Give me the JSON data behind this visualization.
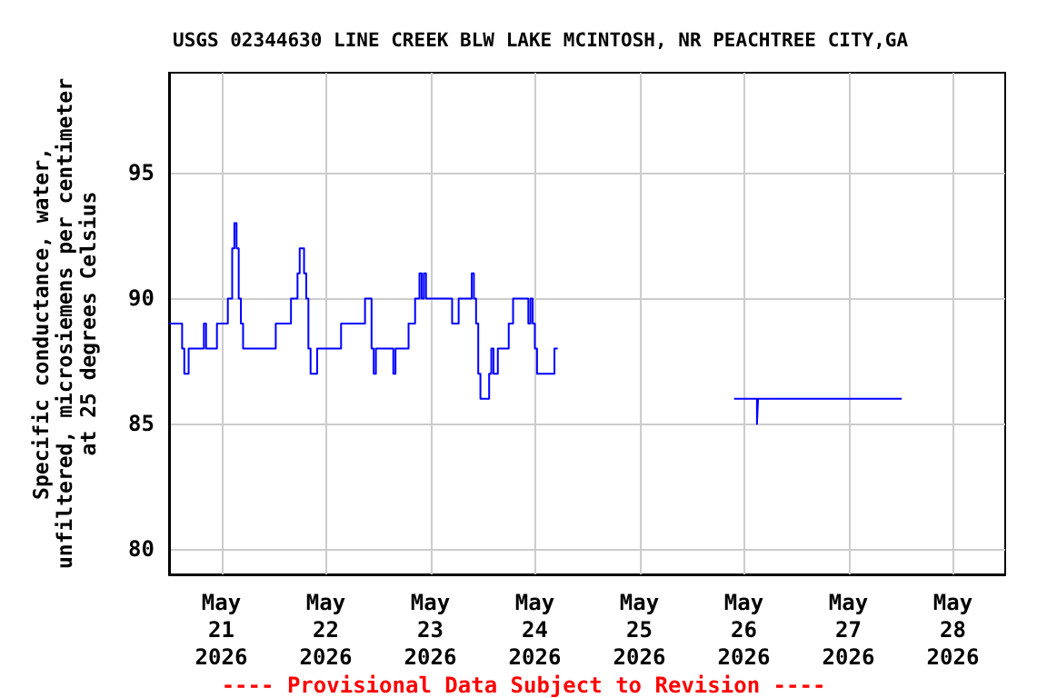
{
  "chart_data": {
    "type": "step",
    "title": "USGS 02344630 LINE CREEK BLW LAKE MCINTOSH, NR PEACHTREE CITY,GA",
    "ylabel": "Specific conductance, water,\nunfiltered, microsiemens per centimeter\nat 25 degrees Celsius",
    "annotations": [
      "---- Provisional Data Subject to Revision ----"
    ],
    "x": [
      "2026-05-20T12:00",
      "2026-05-20T15:00",
      "2026-05-20T15:30",
      "2026-05-20T16:30",
      "2026-05-20T20:00",
      "2026-05-20T20:30",
      "2026-05-20T23:00",
      "2026-05-21T01:30",
      "2026-05-21T02:30",
      "2026-05-21T03:00",
      "2026-05-21T03:30",
      "2026-05-21T04:00",
      "2026-05-21T04:30",
      "2026-05-21T05:00",
      "2026-05-21T12:30",
      "2026-05-21T16:00",
      "2026-05-21T17:30",
      "2026-05-21T18:00",
      "2026-05-21T19:00",
      "2026-05-21T19:30",
      "2026-05-21T20:00",
      "2026-05-21T20:30",
      "2026-05-21T22:00",
      "2026-05-22T03:30",
      "2026-05-22T09:00",
      "2026-05-22T10:30",
      "2026-05-22T11:00",
      "2026-05-22T11:30",
      "2026-05-22T15:30",
      "2026-05-22T16:00",
      "2026-05-22T19:00",
      "2026-05-22T20:30",
      "2026-05-22T21:30",
      "2026-05-22T22:00",
      "2026-05-22T22:30",
      "2026-05-22T23:00",
      "2026-05-23T05:00",
      "2026-05-23T06:30",
      "2026-05-23T09:30",
      "2026-05-23T10:00",
      "2026-05-23T10:30",
      "2026-05-23T11:00",
      "2026-05-23T11:30",
      "2026-05-23T13:30",
      "2026-05-23T14:00",
      "2026-05-23T14:30",
      "2026-05-23T15:30",
      "2026-05-23T18:00",
      "2026-05-23T19:00",
      "2026-05-23T22:30",
      "2026-05-23T23:00",
      "2026-05-23T23:30",
      "2026-05-24T00:00",
      "2026-05-24T00:30",
      "2026-05-24T04:30",
      "2026-05-24T05:15",
      "2026-05-24T05:30",
      "2026-05-25T21:45",
      "2026-05-26T03:00",
      "2026-05-26T03:15",
      "2026-05-27T12:15"
    ],
    "series": [
      {
        "color": "#0000ff",
        "values": [
          89,
          88,
          87,
          88,
          89,
          88,
          89,
          90,
          92,
          93,
          92,
          90,
          89,
          88,
          89,
          90,
          91,
          92,
          91,
          90,
          88,
          87,
          88,
          89,
          90,
          88,
          87,
          88,
          87,
          88,
          89,
          90,
          91,
          90,
          91,
          90,
          89,
          90,
          91,
          90,
          89,
          87,
          86,
          87,
          88,
          87,
          88,
          89,
          90,
          89,
          90,
          89,
          88,
          87,
          88,
          88,
          null,
          86,
          85,
          86,
          86
        ]
      }
    ],
    "xlim": [
      "2026-05-20T12:00",
      "2026-05-28T12:00"
    ],
    "xticks": [
      {
        "value": "2026-05-21T00:00",
        "label": "May\n21\n2026"
      },
      {
        "value": "2026-05-22T00:00",
        "label": "May\n22\n2026"
      },
      {
        "value": "2026-05-23T00:00",
        "label": "May\n23\n2026"
      },
      {
        "value": "2026-05-24T00:00",
        "label": "May\n24\n2026"
      },
      {
        "value": "2026-05-25T00:00",
        "label": "May\n25\n2026"
      },
      {
        "value": "2026-05-26T00:00",
        "label": "May\n26\n2026"
      },
      {
        "value": "2026-05-27T00:00",
        "label": "May\n27\n2026"
      },
      {
        "value": "2026-05-28T00:00",
        "label": "May\n28\n2026"
      }
    ],
    "ylim": [
      79,
      99
    ],
    "yticks": [
      80,
      85,
      90,
      95
    ],
    "grid": true
  }
}
